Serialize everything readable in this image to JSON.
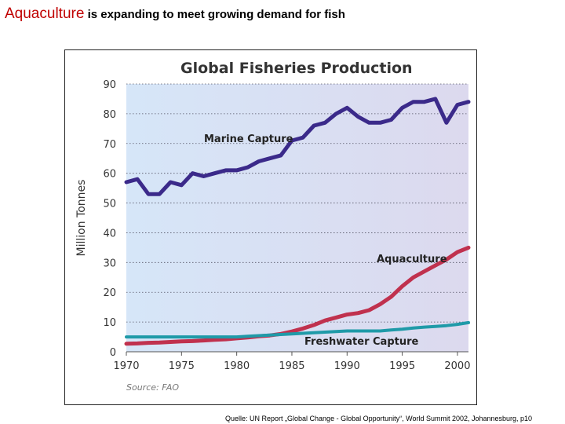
{
  "slide": {
    "title_accent": "Aquaculture",
    "title_rest": " is expanding to meet growing demand for fish",
    "caption": "Quelle: UN Report „Global Change - Global Opportunity“, World Summit 2002, Johannesburg,  p10"
  },
  "chart_data": {
    "type": "line",
    "title": "Global Fisheries Production",
    "xlabel": "",
    "ylabel": "Million Tonnes",
    "source": "Source: FAO",
    "xlim": [
      1970,
      2001
    ],
    "ylim": [
      0,
      90
    ],
    "xticks": [
      1970,
      1975,
      1980,
      1985,
      1990,
      1995,
      2000
    ],
    "yticks": [
      0,
      10,
      20,
      30,
      40,
      50,
      60,
      70,
      80,
      90
    ],
    "grid": true,
    "series": [
      {
        "name": "Marine Capture",
        "color": "#3b2a8a",
        "x": [
          1970,
          1971,
          1972,
          1973,
          1974,
          1975,
          1976,
          1977,
          1978,
          1979,
          1980,
          1981,
          1982,
          1983,
          1984,
          1985,
          1986,
          1987,
          1988,
          1989,
          1990,
          1991,
          1992,
          1993,
          1994,
          1995,
          1996,
          1997,
          1998,
          1999,
          2000,
          2001
        ],
        "values": [
          57,
          58,
          53,
          53,
          57,
          56,
          60,
          59,
          60,
          61,
          61,
          62,
          64,
          65,
          66,
          71,
          72,
          76,
          77,
          80,
          82,
          79,
          77,
          77,
          78,
          82,
          84,
          84,
          85,
          77,
          83,
          84
        ]
      },
      {
        "name": "Aquaculture",
        "color": "#c0314e",
        "x": [
          1970,
          1971,
          1972,
          1973,
          1974,
          1975,
          1976,
          1977,
          1978,
          1979,
          1980,
          1981,
          1982,
          1983,
          1984,
          1985,
          1986,
          1987,
          1988,
          1989,
          1990,
          1991,
          1992,
          1993,
          1994,
          1995,
          1996,
          1997,
          1998,
          1999,
          2000,
          2001
        ],
        "values": [
          2.7,
          2.8,
          3,
          3.1,
          3.3,
          3.5,
          3.6,
          3.8,
          4,
          4.2,
          4.5,
          4.8,
          5.2,
          5.5,
          6,
          6.8,
          7.8,
          9,
          10.5,
          11.5,
          12.5,
          13,
          14,
          16,
          18.5,
          22,
          25,
          27,
          29,
          31,
          33.5,
          35
        ]
      },
      {
        "name": "Freshwater Capture",
        "color": "#1f9aa8",
        "x": [
          1970,
          1971,
          1972,
          1973,
          1974,
          1975,
          1976,
          1977,
          1978,
          1979,
          1980,
          1981,
          1982,
          1983,
          1984,
          1985,
          1986,
          1987,
          1988,
          1989,
          1990,
          1991,
          1992,
          1993,
          1994,
          1995,
          1996,
          1997,
          1998,
          1999,
          2000,
          2001
        ],
        "values": [
          5,
          5,
          5,
          5,
          5,
          5,
          5,
          5,
          5,
          5,
          5,
          5.2,
          5.4,
          5.6,
          5.8,
          6,
          6.2,
          6.4,
          6.6,
          6.8,
          7,
          7,
          7,
          7,
          7.3,
          7.6,
          8,
          8.3,
          8.5,
          8.8,
          9.2,
          9.8
        ]
      }
    ],
    "annotations": {
      "marine_label": "Marine Capture",
      "aquaculture_label": "Aquaculture",
      "freshwater_label": "Freshwater Capture"
    }
  }
}
